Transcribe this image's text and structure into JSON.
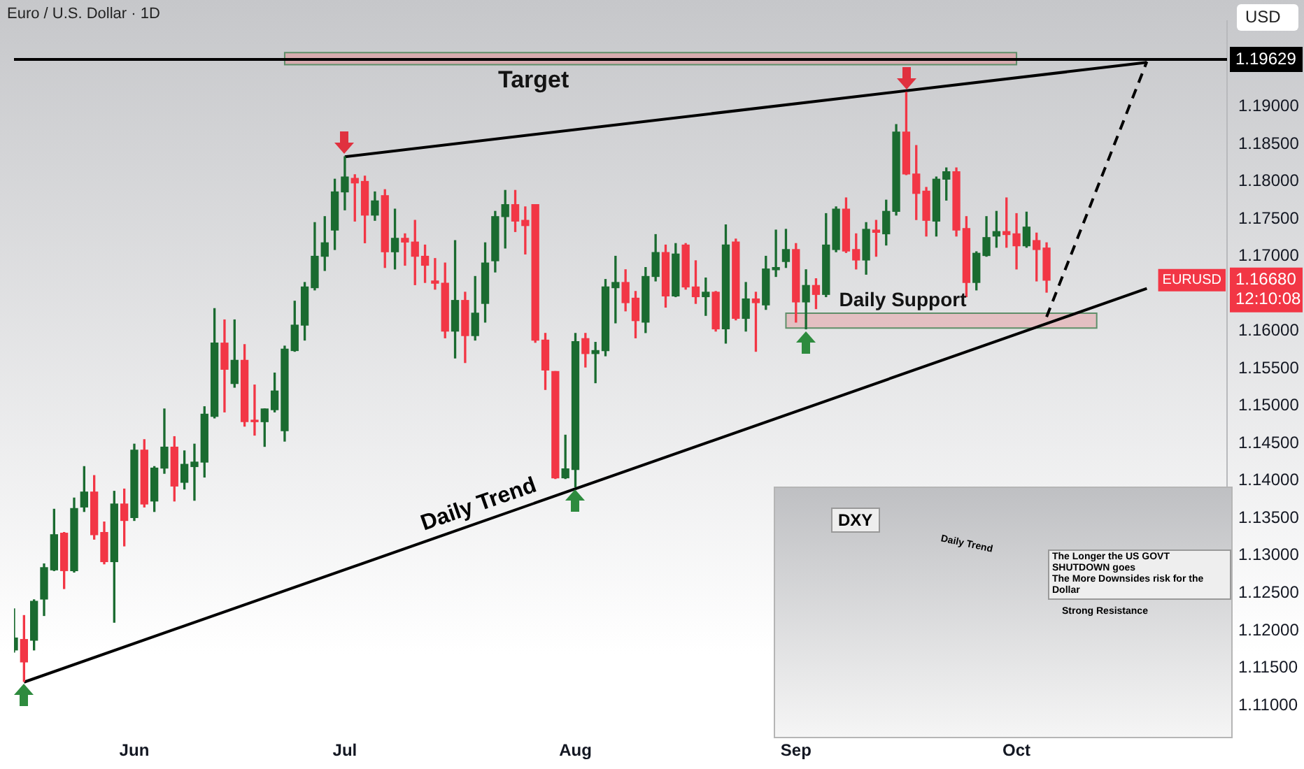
{
  "chart_data": {
    "type": "candlestick",
    "title": "Euro / U.S. Dollar · 1D",
    "categories": [
      null,
      null,
      null,
      null,
      null,
      null,
      null,
      null,
      null,
      null,
      null,
      null,
      "Jun",
      null,
      null,
      null,
      null,
      null,
      null,
      null,
      null,
      null,
      null,
      null,
      null,
      null,
      null,
      null,
      null,
      null,
      null,
      null,
      null,
      "Jul",
      null,
      null,
      null,
      null,
      null,
      null,
      null,
      null,
      null,
      null,
      null,
      null,
      null,
      null,
      null,
      null,
      null,
      null,
      null,
      null,
      null,
      null,
      "Aug",
      null,
      null,
      null,
      null,
      null,
      null,
      null,
      null,
      null,
      null,
      null,
      null,
      null,
      null,
      null,
      null,
      null,
      null,
      null,
      null,
      null,
      "Sep",
      null,
      null,
      null,
      null,
      null,
      null,
      null,
      null,
      null,
      null,
      null,
      null,
      null,
      null,
      null,
      null,
      null,
      null,
      null,
      null,
      null,
      "Oct",
      null,
      null,
      null,
      null,
      null,
      null,
      null,
      null,
      null,
      null,
      null,
      null,
      null,
      null,
      null,
      null,
      null,
      null,
      null,
      null,
      null
    ],
    "ohlc": [
      [
        1.1174,
        1.1229,
        1.1171,
        1.119
      ],
      [
        1.1188,
        1.122,
        1.1132,
        1.1158
      ],
      [
        1.1187,
        1.1241,
        1.1174,
        1.1239
      ],
      [
        1.1242,
        1.1289,
        1.122,
        1.1284
      ],
      [
        1.1281,
        1.1362,
        1.128,
        1.1328
      ],
      [
        1.133,
        1.1331,
        1.1256,
        1.128
      ],
      [
        1.128,
        1.1377,
        1.1278,
        1.1363
      ],
      [
        1.1365,
        1.1419,
        1.1359,
        1.1385
      ],
      [
        1.1385,
        1.1407,
        1.1322,
        1.1328
      ],
      [
        1.1331,
        1.1345,
        1.1289,
        1.1292
      ],
      [
        1.1292,
        1.1386,
        1.1211,
        1.1369
      ],
      [
        1.1369,
        1.1389,
        1.1313,
        1.1347
      ],
      [
        1.1351,
        1.1449,
        1.1347,
        1.1441
      ],
      [
        1.1441,
        1.1455,
        1.1365,
        1.1369
      ],
      [
        1.1373,
        1.1419,
        1.1359,
        1.1417
      ],
      [
        1.1417,
        1.1496,
        1.141,
        1.1445
      ],
      [
        1.1445,
        1.1459,
        1.1373,
        1.1393
      ],
      [
        1.1398,
        1.144,
        1.1389,
        1.1422
      ],
      [
        1.1419,
        1.1449,
        1.1374,
        1.1425
      ],
      [
        1.1425,
        1.1499,
        1.1405,
        1.1489
      ],
      [
        1.1486,
        1.163,
        1.1484,
        1.1584
      ],
      [
        1.1584,
        1.1615,
        1.1492,
        1.1549
      ],
      [
        1.153,
        1.1615,
        1.1525,
        1.1561
      ],
      [
        1.1561,
        1.1582,
        1.1473,
        1.1479
      ],
      [
        1.1481,
        1.1528,
        1.1461,
        1.1479
      ],
      [
        1.1479,
        1.1496,
        1.1446,
        1.1496
      ],
      [
        1.1495,
        1.1544,
        1.1492,
        1.152
      ],
      [
        1.1467,
        1.158,
        1.1453,
        1.1576
      ],
      [
        1.1574,
        1.164,
        1.1573,
        1.1608
      ],
      [
        1.1608,
        1.1665,
        1.1588,
        1.1659
      ],
      [
        1.1658,
        1.1745,
        1.1655,
        1.17
      ],
      [
        1.17,
        1.1753,
        1.1681,
        1.1718
      ],
      [
        1.1735,
        1.1803,
        1.1709,
        1.1786
      ],
      [
        1.1786,
        1.1833,
        1.1762,
        1.1806
      ],
      [
        1.1804,
        1.1809,
        1.1747,
        1.1798
      ],
      [
        1.18,
        1.1807,
        1.1718,
        1.1755
      ],
      [
        1.1755,
        1.1786,
        1.1748,
        1.1774
      ],
      [
        1.1781,
        1.1789,
        1.1685,
        1.1706
      ],
      [
        1.1706,
        1.1763,
        1.1683,
        1.1724
      ],
      [
        1.1724,
        1.173,
        1.1688,
        1.1719
      ],
      [
        1.1719,
        1.1748,
        1.1662,
        1.17
      ],
      [
        1.17,
        1.1715,
        1.1665,
        1.1688
      ],
      [
        1.1667,
        1.1697,
        1.1656,
        1.1664
      ],
      [
        1.1664,
        1.1691,
        1.1591,
        1.16
      ],
      [
        1.16,
        1.1721,
        1.1564,
        1.1641
      ],
      [
        1.1641,
        1.1652,
        1.1558,
        1.1594
      ],
      [
        1.1594,
        1.1673,
        1.1588,
        1.1624
      ],
      [
        1.1637,
        1.1718,
        1.1612,
        1.1691
      ],
      [
        1.1694,
        1.176,
        1.1679,
        1.1753
      ],
      [
        1.1753,
        1.1788,
        1.1711,
        1.1769
      ],
      [
        1.1769,
        1.1788,
        1.1733,
        1.1747
      ],
      [
        1.1748,
        1.1766,
        1.1703,
        1.1741
      ],
      [
        1.1769,
        1.1769,
        1.1585,
        1.1588
      ],
      [
        1.1588,
        1.1597,
        1.1522,
        1.1548
      ],
      [
        1.1546,
        1.1546,
        1.1403,
        1.1404
      ],
      [
        1.1404,
        1.1461,
        1.1403,
        1.1416
      ],
      [
        1.1415,
        1.1597,
        1.1392,
        1.1586
      ],
      [
        1.159,
        1.1597,
        1.1552,
        1.157
      ],
      [
        1.157,
        1.1585,
        1.1531,
        1.1574
      ],
      [
        1.1574,
        1.1669,
        1.1567,
        1.1659
      ],
      [
        1.1658,
        1.17,
        1.1611,
        1.1665
      ],
      [
        1.1665,
        1.1682,
        1.1627,
        1.1638
      ],
      [
        1.1644,
        1.1653,
        1.1591,
        1.1614
      ],
      [
        1.1612,
        1.1685,
        1.1598,
        1.1673
      ],
      [
        1.1673,
        1.1729,
        1.1667,
        1.1705
      ],
      [
        1.1705,
        1.1715,
        1.1632,
        1.1647
      ],
      [
        1.1647,
        1.1717,
        1.1646,
        1.1703
      ],
      [
        1.1715,
        1.1717,
        1.1656,
        1.1659
      ],
      [
        1.1659,
        1.1694,
        1.1637,
        1.1646
      ],
      [
        1.1646,
        1.1671,
        1.1621,
        1.1652
      ],
      [
        1.1652,
        1.1653,
        1.16,
        1.1603
      ],
      [
        1.1603,
        1.1742,
        1.1584,
        1.1715
      ],
      [
        1.1719,
        1.1723,
        1.1615,
        1.1617
      ],
      [
        1.1617,
        1.1665,
        1.16,
        1.1643
      ],
      [
        1.1643,
        1.1652,
        1.1573,
        1.1638
      ],
      [
        1.1635,
        1.17,
        1.1629,
        1.1683
      ],
      [
        1.1682,
        1.1735,
        1.1673,
        1.1685
      ],
      [
        1.1693,
        1.1736,
        1.1685,
        1.1709
      ],
      [
        1.1709,
        1.1717,
        1.1612,
        1.1639
      ],
      [
        1.1639,
        1.1682,
        1.1603,
        1.1661
      ],
      [
        1.1661,
        1.167,
        1.163,
        1.1649
      ],
      [
        1.1649,
        1.1757,
        1.1646,
        1.1715
      ],
      [
        1.1709,
        1.1766,
        1.1706,
        1.1763
      ],
      [
        1.1763,
        1.1778,
        1.1705,
        1.1707
      ],
      [
        1.1709,
        1.173,
        1.1683,
        1.1695
      ],
      [
        1.1695,
        1.1745,
        1.1676,
        1.1736
      ],
      [
        1.1735,
        1.1748,
        1.17,
        1.1732
      ],
      [
        1.173,
        1.1775,
        1.1715,
        1.176
      ],
      [
        1.176,
        1.1876,
        1.1755,
        1.1866
      ],
      [
        1.1866,
        1.1919,
        1.1809,
        1.181
      ],
      [
        1.181,
        1.1848,
        1.1749,
        1.1784
      ],
      [
        1.1787,
        1.1792,
        1.1727,
        1.1748
      ],
      [
        1.1747,
        1.1806,
        1.1727,
        1.1803
      ],
      [
        1.1803,
        1.1818,
        1.1775,
        1.1813
      ],
      [
        1.1813,
        1.1818,
        1.1727,
        1.1735
      ],
      [
        1.1737,
        1.1753,
        1.1646,
        1.1665
      ],
      [
        1.1665,
        1.1706,
        1.1655,
        1.1704
      ],
      [
        1.1701,
        1.1753,
        1.17,
        1.1725
      ],
      [
        1.1727,
        1.176,
        1.1712,
        1.1733
      ],
      [
        1.1733,
        1.1778,
        1.1712,
        1.1729
      ],
      [
        1.173,
        1.1757,
        1.1683,
        1.1714
      ],
      [
        1.1714,
        1.1759,
        1.1712,
        1.1739
      ],
      [
        1.1721,
        1.1731,
        1.1667,
        1.1709
      ],
      [
        1.1711,
        1.1718,
        1.1652,
        1.1668
      ],
      null,
      null,
      null,
      null,
      null,
      null,
      null,
      null,
      null,
      null,
      null,
      null,
      null,
      null,
      null,
      null,
      null,
      null
    ],
    "colors": [
      "#1a6b30",
      "#f23645",
      "#1a6b30",
      "#1a6b30",
      "#1a6b30",
      "#f23645",
      "#1a6b30",
      "#1a6b30",
      "#f23645",
      "#f23645",
      "#1a6b30",
      "#f23645",
      "#1a6b30",
      "#f23645",
      "#1a6b30",
      "#1a6b30",
      "#f23645",
      "#1a6b30",
      "#1a6b30",
      "#1a6b30",
      "#1a6b30",
      "#f23645",
      "#1a6b30",
      "#f23645",
      "#f23645",
      "#1a6b30",
      "#1a6b30",
      "#1a6b30",
      "#1a6b30",
      "#1a6b30",
      "#1a6b30",
      "#1a6b30",
      "#1a6b30",
      "#1a6b30",
      "#f23645",
      "#f23645",
      "#1a6b30",
      "#f23645",
      "#1a6b30",
      "#f23645",
      "#f23645",
      "#f23645",
      "#f23645",
      "#f23645",
      "#1a6b30",
      "#f23645",
      "#1a6b30",
      "#1a6b30",
      "#1a6b30",
      "#1a6b30",
      "#f23645",
      "#f23645",
      "#f23645",
      "#f23645",
      "#f23645",
      "#1a6b30",
      "#1a6b30",
      "#f23645",
      "#1a6b30",
      "#1a6b30",
      "#1a6b30",
      "#f23645",
      "#f23645",
      "#1a6b30",
      "#1a6b30",
      "#f23645",
      "#1a6b30",
      "#f23645",
      "#f23645",
      "#1a6b30",
      "#f23645",
      "#1a6b30",
      "#f23645",
      "#1a6b30",
      "#f23645",
      "#1a6b30",
      "#1a6b30",
      "#1a6b30",
      "#f23645",
      "#1a6b30",
      "#f23645",
      "#1a6b30",
      "#1a6b30",
      "#f23645",
      "#f23645",
      "#1a6b30",
      "#f23645",
      "#1a6b30",
      "#1a6b30",
      "#f23645",
      "#f23645",
      "#f23645",
      "#1a6b30",
      "#1a6b30",
      "#f23645",
      "#f23645",
      "#1a6b30",
      "#1a6b30",
      "#1a6b30",
      "#f23645",
      "#f23645",
      "#1a6b30",
      "#f23645",
      "#f23645",
      null,
      null,
      null,
      null,
      null,
      null,
      null,
      null,
      null,
      null,
      null,
      null,
      null,
      null,
      null,
      null,
      null,
      null
    ],
    "series": [
      {
        "type": "line",
        "name": "Daily Trend",
        "color": "#000000",
        "line_style": "solid",
        "values": [
          null,
          1.1131,
          null,
          null,
          null,
          null,
          null,
          null,
          null,
          null,
          null,
          null,
          null,
          null,
          null,
          null,
          null,
          null,
          null,
          null,
          null,
          null,
          null,
          null,
          null,
          null,
          null,
          null,
          null,
          null,
          null,
          null,
          null,
          null,
          null,
          null,
          null,
          null,
          null,
          null,
          null,
          null,
          null,
          null,
          null,
          null,
          null,
          null,
          null,
          null,
          null,
          null,
          null,
          null,
          null,
          null,
          null,
          null,
          null,
          null,
          null,
          null,
          null,
          null,
          null,
          null,
          null,
          null,
          null,
          null,
          null,
          null,
          null,
          null,
          null,
          null,
          null,
          null,
          null,
          null,
          null,
          null,
          null,
          null,
          null,
          null,
          null,
          null,
          null,
          null,
          null,
          null,
          null,
          null,
          null,
          null,
          null,
          null,
          null,
          null,
          null,
          null,
          null,
          null,
          null,
          null,
          null,
          null,
          null,
          null,
          null,
          null,
          null,
          1.1657,
          null,
          null,
          null,
          null,
          null,
          null,
          null,
          null
        ]
      },
      {
        "type": "line",
        "color": "#000000",
        "line_style": "solid",
        "values": [
          null,
          null,
          null,
          null,
          null,
          null,
          null,
          null,
          null,
          null,
          null,
          null,
          null,
          null,
          null,
          null,
          null,
          null,
          null,
          null,
          null,
          null,
          null,
          null,
          null,
          null,
          null,
          null,
          null,
          null,
          null,
          null,
          null,
          1.1833,
          null,
          null,
          null,
          null,
          null,
          null,
          null,
          null,
          null,
          null,
          null,
          null,
          null,
          null,
          null,
          null,
          null,
          null,
          null,
          null,
          null,
          null,
          null,
          null,
          null,
          null,
          null,
          null,
          null,
          null,
          null,
          null,
          null,
          null,
          null,
          null,
          null,
          null,
          null,
          null,
          null,
          null,
          null,
          null,
          null,
          null,
          null,
          null,
          null,
          null,
          null,
          null,
          null,
          null,
          null,
          null,
          null,
          null,
          null,
          null,
          null,
          null,
          null,
          null,
          null,
          null,
          null,
          null,
          null,
          null,
          null,
          null,
          null,
          null,
          null,
          null,
          null,
          null,
          null,
          1.1959,
          null,
          null,
          null,
          null,
          null,
          null,
          null,
          null
        ]
      },
      {
        "type": "line",
        "color": "#000000",
        "line_style": "dashed",
        "values": [
          null,
          null,
          null,
          null,
          null,
          null,
          null,
          null,
          null,
          null,
          null,
          null,
          null,
          null,
          null,
          null,
          null,
          null,
          null,
          null,
          null,
          null,
          null,
          null,
          null,
          null,
          null,
          null,
          null,
          null,
          null,
          null,
          null,
          null,
          null,
          null,
          null,
          null,
          null,
          null,
          null,
          null,
          null,
          null,
          null,
          null,
          null,
          null,
          null,
          null,
          null,
          null,
          null,
          null,
          null,
          null,
          null,
          null,
          null,
          null,
          null,
          null,
          null,
          null,
          null,
          null,
          null,
          null,
          null,
          null,
          null,
          null,
          null,
          null,
          null,
          null,
          null,
          null,
          null,
          null,
          null,
          null,
          null,
          null,
          null,
          null,
          null,
          null,
          null,
          null,
          null,
          null,
          null,
          null,
          null,
          null,
          null,
          null,
          null,
          null,
          null,
          null,
          null,
          1.1619,
          null,
          null,
          null,
          null,
          null,
          null,
          null,
          null,
          null,
          1.196,
          null,
          null,
          null,
          null,
          null,
          null,
          null,
          null
        ]
      }
    ],
    "ylim": [
      1.1071,
      1.2014
    ],
    "yticks": [
      {
        "value": 1.11,
        "label": "1.11000"
      },
      {
        "value": 1.115,
        "label": "1.11500"
      },
      {
        "value": 1.12,
        "label": "1.12000"
      },
      {
        "value": 1.125,
        "label": "1.12500"
      },
      {
        "value": 1.13,
        "label": "1.13000"
      },
      {
        "value": 1.135,
        "label": "1.13500"
      },
      {
        "value": 1.14,
        "label": "1.14000"
      },
      {
        "value": 1.145,
        "label": "1.14500"
      },
      {
        "value": 1.15,
        "label": "1.15000"
      },
      {
        "value": 1.155,
        "label": "1.15500"
      },
      {
        "value": 1.16,
        "label": "1.16000"
      },
      {
        "value": 1.17,
        "label": "1.17000"
      },
      {
        "value": 1.175,
        "label": "1.17500"
      },
      {
        "value": 1.18,
        "label": "1.18000"
      },
      {
        "value": 1.185,
        "label": "1.18500"
      },
      {
        "value": 1.19,
        "label": "1.19000"
      }
    ],
    "grid": false,
    "legend": false,
    "ref_lines": [
      {
        "axis": "y",
        "value": 1.19629,
        "label": "1.19629",
        "color": "#000000"
      }
    ],
    "bands": [
      {
        "axis": "y",
        "from": 1.1956,
        "to": 1.1972,
        "label": "Target",
        "color": "#d9a3a6"
      },
      {
        "axis": "y",
        "from": 1.1604,
        "to": 1.1624,
        "label": "Daily Support",
        "color": "#e3b7b9"
      }
    ],
    "annotations": [
      "EURUSD",
      "1.16680",
      "12:10:08",
      "USD",
      "DXY",
      "Daily Trend",
      "The Longer the US GOVT SHUTDOWN goes",
      "The More Downsides risk for the Dollar",
      "Strong Resistance"
    ]
  }
}
